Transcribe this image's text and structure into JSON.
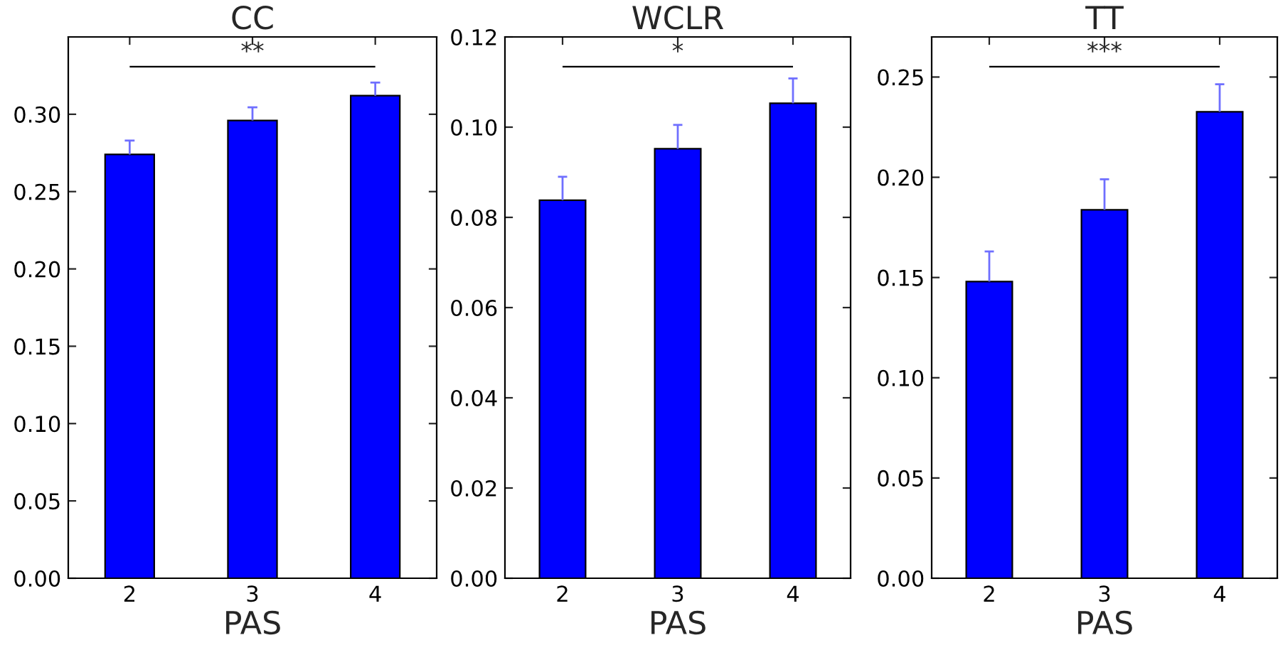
{
  "chart_data": [
    {
      "type": "bar",
      "title": "CC",
      "xlabel": "PAS",
      "categories": [
        "2",
        "3",
        "4"
      ],
      "values": [
        0.274,
        0.296,
        0.312
      ],
      "color": "#0000ff",
      "errors": [
        [
          0.274,
          0.283
        ],
        [
          0.296,
          0.3045
        ],
        [
          0.312,
          0.3205
        ]
      ],
      "ylim": [
        0,
        0.35
      ],
      "yticks": [
        {
          "value": 0,
          "label": "0.00"
        },
        0.05,
        {
          "value": 0.1,
          "label": "0.10"
        },
        0.15,
        {
          "value": 0.2,
          "label": "0.20"
        },
        0.25,
        {
          "value": 0.3,
          "label": "0.30"
        }
      ],
      "annotations": [
        "**"
      ],
      "grid": false
    },
    {
      "type": "bar",
      "title": "WCLR",
      "xlabel": "PAS",
      "categories": [
        "2",
        "3",
        "4"
      ],
      "values": [
        0.0838,
        0.0952,
        0.1053
      ],
      "color": "#0000ff",
      "errors": [
        [
          0.0838,
          0.089
        ],
        [
          0.0952,
          0.1005
        ],
        [
          0.1053,
          0.1108
        ]
      ],
      "ylim": [
        0,
        0.12
      ],
      "yticks": [
        {
          "value": 0,
          "label": "0.00"
        },
        0.02,
        0.04,
        0.06,
        0.08,
        {
          "value": 0.1,
          "label": "0.10"
        },
        0.12
      ],
      "annotations": [
        "*"
      ],
      "grid": false
    },
    {
      "type": "bar",
      "title": "TT",
      "xlabel": "PAS",
      "categories": [
        "2",
        "3",
        "4"
      ],
      "values": [
        0.148,
        0.1838,
        0.2327
      ],
      "color": "#0000ff",
      "errors": [
        [
          0.148,
          0.163
        ],
        [
          0.1838,
          0.199
        ],
        [
          0.2327,
          0.2464
        ]
      ],
      "ylim": [
        0,
        0.27
      ],
      "yticks": [
        {
          "value": 0,
          "label": "0.00"
        },
        0.05,
        {
          "value": 0.1,
          "label": "0.10"
        },
        0.15,
        {
          "value": 0.2,
          "label": "0.20"
        },
        0.25
      ],
      "annotations": [
        "***"
      ],
      "grid": false
    }
  ]
}
